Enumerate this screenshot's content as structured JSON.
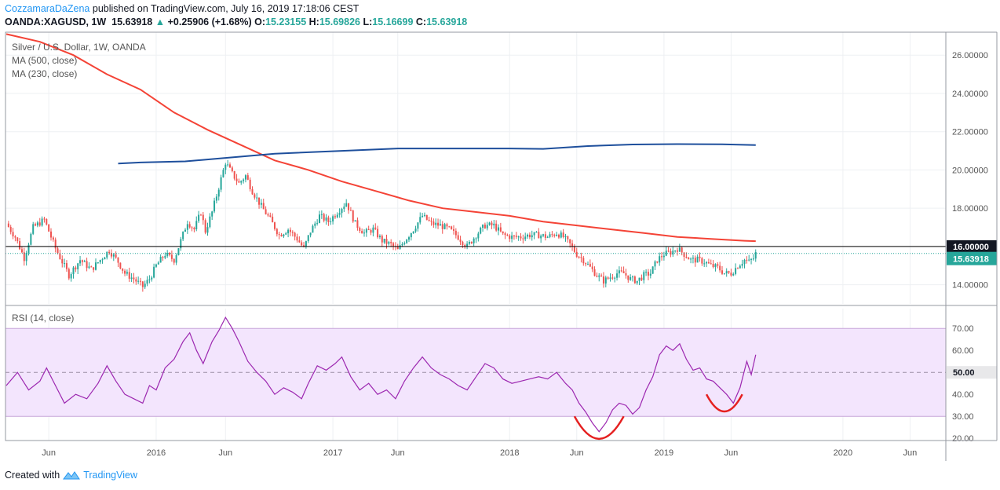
{
  "header": {
    "publisher": "CozzamaraDaZena",
    "published_text": "published on TradingView.com, July 16, 2019 17:18:06 CEST",
    "symbol": "OANDA:XAGUSD, 1W",
    "last": "15.63918",
    "change": "+0.25906 (+1.68%)",
    "o_label": "O:",
    "o_value": "15.23155",
    "h_label": "H:",
    "h_value": "15.69826",
    "l_label": "L:",
    "l_value": "15.16699",
    "c_label": "C:",
    "c_value": "15.63918"
  },
  "footer": {
    "created_with": "Created with",
    "brand": "TradingView"
  },
  "colors": {
    "up": "#26a69a",
    "down": "#ef5350",
    "ma500": "#1e4f9c",
    "ma230": "#f44336",
    "rsi": "#9c27b0",
    "rsi_band": "#f3e5fd",
    "arc": "#e52020",
    "grid": "#eef0f3"
  },
  "chart_data": [
    {
      "type": "candlestick",
      "title": "Silver / U.S. Dollar, 1W, OANDA",
      "legend": [
        "MA (500, close)",
        "MA (230, close)"
      ],
      "ylim": [
        13.0,
        27.2
      ],
      "y_ticks": [
        "26.00000",
        "24.00000",
        "22.00000",
        "20.00000",
        "18.00000",
        "16.00000",
        "14.00000"
      ],
      "x_ticks": [
        "Jun",
        "2016",
        "Jun",
        "2017",
        "Jun",
        "2018",
        "Jun",
        "2019",
        "Jun",
        "2020",
        "Jun"
      ],
      "horizontal_line": 16.0,
      "horizontal_line_label": "16.00000",
      "last_price_label": "15.63918",
      "last_price": 15.63918,
      "close_series": [
        {
          "t": 0,
          "c": 17.2
        },
        {
          "t": 4,
          "c": 16.5
        },
        {
          "t": 8,
          "c": 15.4
        },
        {
          "t": 12,
          "c": 17.0
        },
        {
          "t": 17,
          "c": 17.4
        },
        {
          "t": 22,
          "c": 15.9
        },
        {
          "t": 28,
          "c": 14.5
        },
        {
          "t": 33,
          "c": 15.3
        },
        {
          "t": 38,
          "c": 14.8
        },
        {
          "t": 42,
          "c": 15.3
        },
        {
          "t": 46,
          "c": 15.8
        },
        {
          "t": 50,
          "c": 15.2
        },
        {
          "t": 53,
          "c": 14.6
        },
        {
          "t": 57,
          "c": 14.3
        },
        {
          "t": 61,
          "c": 13.9
        },
        {
          "t": 64,
          "c": 14.3
        },
        {
          "t": 67,
          "c": 15.0
        },
        {
          "t": 71,
          "c": 15.6
        },
        {
          "t": 75,
          "c": 15.3
        },
        {
          "t": 78,
          "c": 16.3
        },
        {
          "t": 81,
          "c": 17.3
        },
        {
          "t": 84,
          "c": 16.9
        },
        {
          "t": 87,
          "c": 17.8
        },
        {
          "t": 89,
          "c": 16.8
        },
        {
          "t": 92,
          "c": 17.8
        },
        {
          "t": 95,
          "c": 19.1
        },
        {
          "t": 98,
          "c": 20.4
        },
        {
          "t": 101,
          "c": 19.8
        },
        {
          "t": 104,
          "c": 19.3
        },
        {
          "t": 107,
          "c": 19.7
        },
        {
          "t": 110,
          "c": 18.9
        },
        {
          "t": 114,
          "c": 18.1
        },
        {
          "t": 118,
          "c": 17.4
        },
        {
          "t": 122,
          "c": 16.6
        },
        {
          "t": 126,
          "c": 16.9
        },
        {
          "t": 130,
          "c": 16.4
        },
        {
          "t": 133,
          "c": 15.9
        },
        {
          "t": 136,
          "c": 16.8
        },
        {
          "t": 140,
          "c": 17.6
        },
        {
          "t": 144,
          "c": 17.3
        },
        {
          "t": 148,
          "c": 17.8
        },
        {
          "t": 152,
          "c": 18.3
        },
        {
          "t": 156,
          "c": 17.2
        },
        {
          "t": 160,
          "c": 16.7
        },
        {
          "t": 164,
          "c": 16.9
        },
        {
          "t": 168,
          "c": 16.3
        },
        {
          "t": 172,
          "c": 16.1
        },
        {
          "t": 175,
          "c": 15.8
        },
        {
          "t": 178,
          "c": 16.3
        },
        {
          "t": 182,
          "c": 16.9
        },
        {
          "t": 186,
          "c": 17.6
        },
        {
          "t": 190,
          "c": 17.2
        },
        {
          "t": 194,
          "c": 17.1
        },
        {
          "t": 198,
          "c": 16.9
        },
        {
          "t": 202,
          "c": 16.5
        },
        {
          "t": 206,
          "c": 16.0
        },
        {
          "t": 210,
          "c": 16.6
        },
        {
          "t": 214,
          "c": 17.1
        },
        {
          "t": 218,
          "c": 17.1
        },
        {
          "t": 222,
          "c": 16.6
        },
        {
          "t": 226,
          "c": 16.5
        },
        {
          "t": 230,
          "c": 16.5
        },
        {
          "t": 234,
          "c": 16.6
        },
        {
          "t": 238,
          "c": 16.6
        },
        {
          "t": 242,
          "c": 16.5
        },
        {
          "t": 246,
          "c": 16.7
        },
        {
          "t": 249,
          "c": 16.5
        },
        {
          "t": 252,
          "c": 16.1
        },
        {
          "t": 255,
          "c": 15.6
        },
        {
          "t": 258,
          "c": 15.3
        },
        {
          "t": 261,
          "c": 14.9
        },
        {
          "t": 264,
          "c": 14.5
        },
        {
          "t": 267,
          "c": 14.2
        },
        {
          "t": 270,
          "c": 14.4
        },
        {
          "t": 273,
          "c": 14.6
        },
        {
          "t": 276,
          "c": 14.6
        },
        {
          "t": 279,
          "c": 14.3
        },
        {
          "t": 282,
          "c": 14.2
        },
        {
          "t": 285,
          "c": 14.5
        },
        {
          "t": 288,
          "c": 14.6
        },
        {
          "t": 291,
          "c": 15.3
        },
        {
          "t": 294,
          "c": 15.6
        },
        {
          "t": 297,
          "c": 15.7
        },
        {
          "t": 300,
          "c": 15.9
        },
        {
          "t": 303,
          "c": 15.6
        },
        {
          "t": 306,
          "c": 15.3
        },
        {
          "t": 309,
          "c": 15.3
        },
        {
          "t": 312,
          "c": 15.2
        },
        {
          "t": 315,
          "c": 15.0
        },
        {
          "t": 318,
          "c": 14.9
        },
        {
          "t": 321,
          "c": 14.6
        },
        {
          "t": 324,
          "c": 14.6
        },
        {
          "t": 327,
          "c": 15.0
        },
        {
          "t": 330,
          "c": 15.3
        },
        {
          "t": 332,
          "c": 15.2
        },
        {
          "t": 334,
          "c": 15.38
        },
        {
          "t": 335,
          "c": 15.64
        }
      ],
      "ma230": [
        {
          "t": 0,
          "v": 27.1
        },
        {
          "t": 15,
          "v": 26.7
        },
        {
          "t": 30,
          "v": 26.0
        },
        {
          "t": 45,
          "v": 25.0
        },
        {
          "t": 60,
          "v": 24.2
        },
        {
          "t": 75,
          "v": 23.0
        },
        {
          "t": 90,
          "v": 22.1
        },
        {
          "t": 105,
          "v": 21.3
        },
        {
          "t": 120,
          "v": 20.5
        },
        {
          "t": 135,
          "v": 20.0
        },
        {
          "t": 150,
          "v": 19.4
        },
        {
          "t": 165,
          "v": 18.9
        },
        {
          "t": 180,
          "v": 18.4
        },
        {
          "t": 195,
          "v": 18.0
        },
        {
          "t": 210,
          "v": 17.8
        },
        {
          "t": 225,
          "v": 17.6
        },
        {
          "t": 240,
          "v": 17.3
        },
        {
          "t": 255,
          "v": 17.1
        },
        {
          "t": 270,
          "v": 16.9
        },
        {
          "t": 285,
          "v": 16.7
        },
        {
          "t": 300,
          "v": 16.5
        },
        {
          "t": 315,
          "v": 16.4
        },
        {
          "t": 330,
          "v": 16.3
        },
        {
          "t": 335,
          "v": 16.28
        }
      ],
      "ma500": [
        {
          "t": 50,
          "v": 20.34
        },
        {
          "t": 60,
          "v": 20.39
        },
        {
          "t": 80,
          "v": 20.45
        },
        {
          "t": 100,
          "v": 20.65
        },
        {
          "t": 120,
          "v": 20.85
        },
        {
          "t": 150,
          "v": 21.0
        },
        {
          "t": 175,
          "v": 21.12
        },
        {
          "t": 200,
          "v": 21.12
        },
        {
          "t": 225,
          "v": 21.12
        },
        {
          "t": 240,
          "v": 21.1
        },
        {
          "t": 260,
          "v": 21.25
        },
        {
          "t": 280,
          "v": 21.33
        },
        {
          "t": 300,
          "v": 21.35
        },
        {
          "t": 320,
          "v": 21.34
        },
        {
          "t": 335,
          "v": 21.3
        }
      ]
    },
    {
      "type": "line",
      "title": "RSI (14, close)",
      "ylim": [
        19,
        79
      ],
      "y_ticks": [
        "70.00",
        "60.00",
        "40.00",
        "30.00",
        "20.00"
      ],
      "overbought": 70,
      "oversold": 30,
      "mid_label": "50.00",
      "series": [
        {
          "values": [
            {
              "t": 0,
              "v": 44
            },
            {
              "t": 5,
              "v": 50
            },
            {
              "t": 10,
              "v": 42
            },
            {
              "t": 15,
              "v": 46
            },
            {
              "t": 18,
              "v": 52
            },
            {
              "t": 21,
              "v": 46
            },
            {
              "t": 26,
              "v": 36
            },
            {
              "t": 31,
              "v": 40
            },
            {
              "t": 36,
              "v": 38
            },
            {
              "t": 41,
              "v": 45
            },
            {
              "t": 45,
              "v": 53
            },
            {
              "t": 49,
              "v": 46
            },
            {
              "t": 53,
              "v": 40
            },
            {
              "t": 57,
              "v": 38
            },
            {
              "t": 61,
              "v": 36
            },
            {
              "t": 64,
              "v": 44
            },
            {
              "t": 67,
              "v": 42
            },
            {
              "t": 71,
              "v": 52
            },
            {
              "t": 75,
              "v": 56
            },
            {
              "t": 79,
              "v": 64
            },
            {
              "t": 82,
              "v": 68
            },
            {
              "t": 85,
              "v": 60
            },
            {
              "t": 88,
              "v": 54
            },
            {
              "t": 92,
              "v": 64
            },
            {
              "t": 95,
              "v": 69
            },
            {
              "t": 98,
              "v": 75
            },
            {
              "t": 101,
              "v": 70
            },
            {
              "t": 104,
              "v": 64
            },
            {
              "t": 108,
              "v": 55
            },
            {
              "t": 112,
              "v": 50
            },
            {
              "t": 116,
              "v": 46
            },
            {
              "t": 120,
              "v": 40
            },
            {
              "t": 124,
              "v": 43
            },
            {
              "t": 128,
              "v": 41
            },
            {
              "t": 132,
              "v": 38
            },
            {
              "t": 135,
              "v": 45
            },
            {
              "t": 139,
              "v": 53
            },
            {
              "t": 143,
              "v": 51
            },
            {
              "t": 147,
              "v": 54
            },
            {
              "t": 150,
              "v": 57
            },
            {
              "t": 154,
              "v": 48
            },
            {
              "t": 158,
              "v": 42
            },
            {
              "t": 162,
              "v": 45
            },
            {
              "t": 166,
              "v": 40
            },
            {
              "t": 170,
              "v": 42
            },
            {
              "t": 174,
              "v": 38
            },
            {
              "t": 178,
              "v": 46
            },
            {
              "t": 182,
              "v": 52
            },
            {
              "t": 186,
              "v": 57
            },
            {
              "t": 190,
              "v": 52
            },
            {
              "t": 194,
              "v": 49
            },
            {
              "t": 198,
              "v": 47
            },
            {
              "t": 202,
              "v": 44
            },
            {
              "t": 206,
              "v": 42
            },
            {
              "t": 210,
              "v": 48
            },
            {
              "t": 214,
              "v": 54
            },
            {
              "t": 218,
              "v": 52
            },
            {
              "t": 222,
              "v": 47
            },
            {
              "t": 226,
              "v": 45
            },
            {
              "t": 230,
              "v": 46
            },
            {
              "t": 234,
              "v": 47
            },
            {
              "t": 238,
              "v": 48
            },
            {
              "t": 242,
              "v": 47
            },
            {
              "t": 246,
              "v": 50
            },
            {
              "t": 250,
              "v": 45
            },
            {
              "t": 253,
              "v": 42
            },
            {
              "t": 256,
              "v": 36
            },
            {
              "t": 259,
              "v": 32
            },
            {
              "t": 262,
              "v": 27
            },
            {
              "t": 265,
              "v": 23
            },
            {
              "t": 268,
              "v": 27
            },
            {
              "t": 271,
              "v": 33
            },
            {
              "t": 274,
              "v": 36
            },
            {
              "t": 277,
              "v": 35
            },
            {
              "t": 280,
              "v": 31
            },
            {
              "t": 283,
              "v": 34
            },
            {
              "t": 286,
              "v": 42
            },
            {
              "t": 289,
              "v": 48
            },
            {
              "t": 292,
              "v": 58
            },
            {
              "t": 295,
              "v": 62
            },
            {
              "t": 298,
              "v": 60
            },
            {
              "t": 301,
              "v": 63
            },
            {
              "t": 304,
              "v": 56
            },
            {
              "t": 307,
              "v": 51
            },
            {
              "t": 310,
              "v": 52
            },
            {
              "t": 313,
              "v": 47
            },
            {
              "t": 316,
              "v": 46
            },
            {
              "t": 319,
              "v": 43
            },
            {
              "t": 322,
              "v": 40
            },
            {
              "t": 325,
              "v": 36
            },
            {
              "t": 328,
              "v": 43
            },
            {
              "t": 331,
              "v": 55
            },
            {
              "t": 333,
              "v": 49
            },
            {
              "t": 335,
              "v": 58
            }
          ]
        }
      ],
      "annotations": [
        {
          "type": "arc",
          "t_start": 254,
          "t_end": 276,
          "v_top": 30,
          "v_bottom": 19.5
        },
        {
          "type": "arc",
          "t_start": 313,
          "t_end": 329,
          "v_top": 40,
          "v_bottom": 32
        }
      ]
    }
  ]
}
